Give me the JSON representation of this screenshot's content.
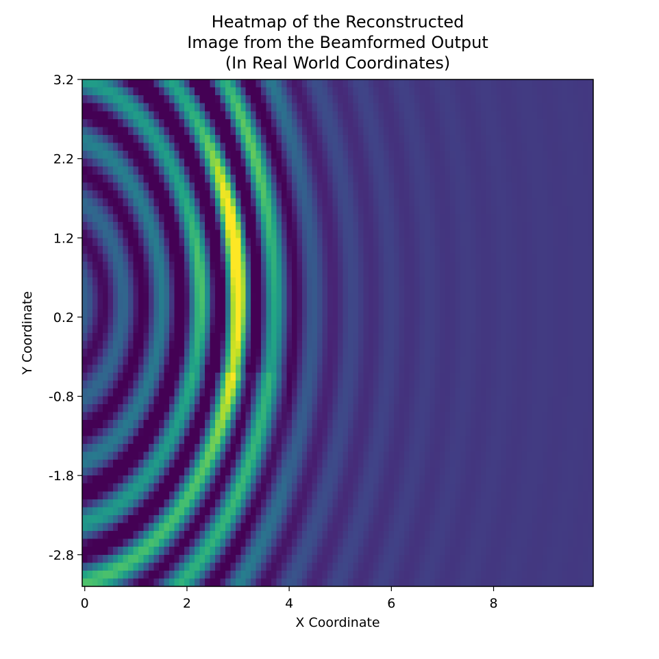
{
  "chart_data": {
    "type": "heatmap",
    "title_lines": [
      "Heatmap of the Reconstructed",
      "Image from the Beamformed Output",
      "(In Real World Coordinates)"
    ],
    "xlabel": "X Coordinate",
    "ylabel": "Y Coordinate",
    "xlim": [
      -0.05,
      9.95
    ],
    "ylim": [
      -3.2,
      3.2
    ],
    "x_ticks": [
      {
        "value": 0,
        "label": "0"
      },
      {
        "value": 2,
        "label": "2"
      },
      {
        "value": 4,
        "label": "4"
      },
      {
        "value": 6,
        "label": "6"
      },
      {
        "value": 8,
        "label": "8"
      }
    ],
    "y_ticks": [
      {
        "value": 3.2,
        "label": "3.2"
      },
      {
        "value": 2.2,
        "label": "2.2"
      },
      {
        "value": 1.2,
        "label": "1.2"
      },
      {
        "value": 0.2,
        "label": "0.2"
      },
      {
        "value": -0.8,
        "label": "-0.8"
      },
      {
        "value": -1.8,
        "label": "-1.8"
      },
      {
        "value": -2.8,
        "label": "-2.8"
      }
    ],
    "colormap": "viridis",
    "grid": false,
    "colorbar": false,
    "field": {
      "description_source_x": [
        0.0,
        1.0
      ],
      "peak": {
        "x": 3.0,
        "y": 1.0,
        "relative_intensity": 1.0
      },
      "dark_lobes": [
        {
          "x": 2.2,
          "y": 0.95,
          "relative_intensity": 0.0
        },
        {
          "x": 3.8,
          "y": 1.2,
          "relative_intensity": 0.0
        }
      ],
      "ring_wavelength": 0.75,
      "background_level": 0.17
    }
  }
}
